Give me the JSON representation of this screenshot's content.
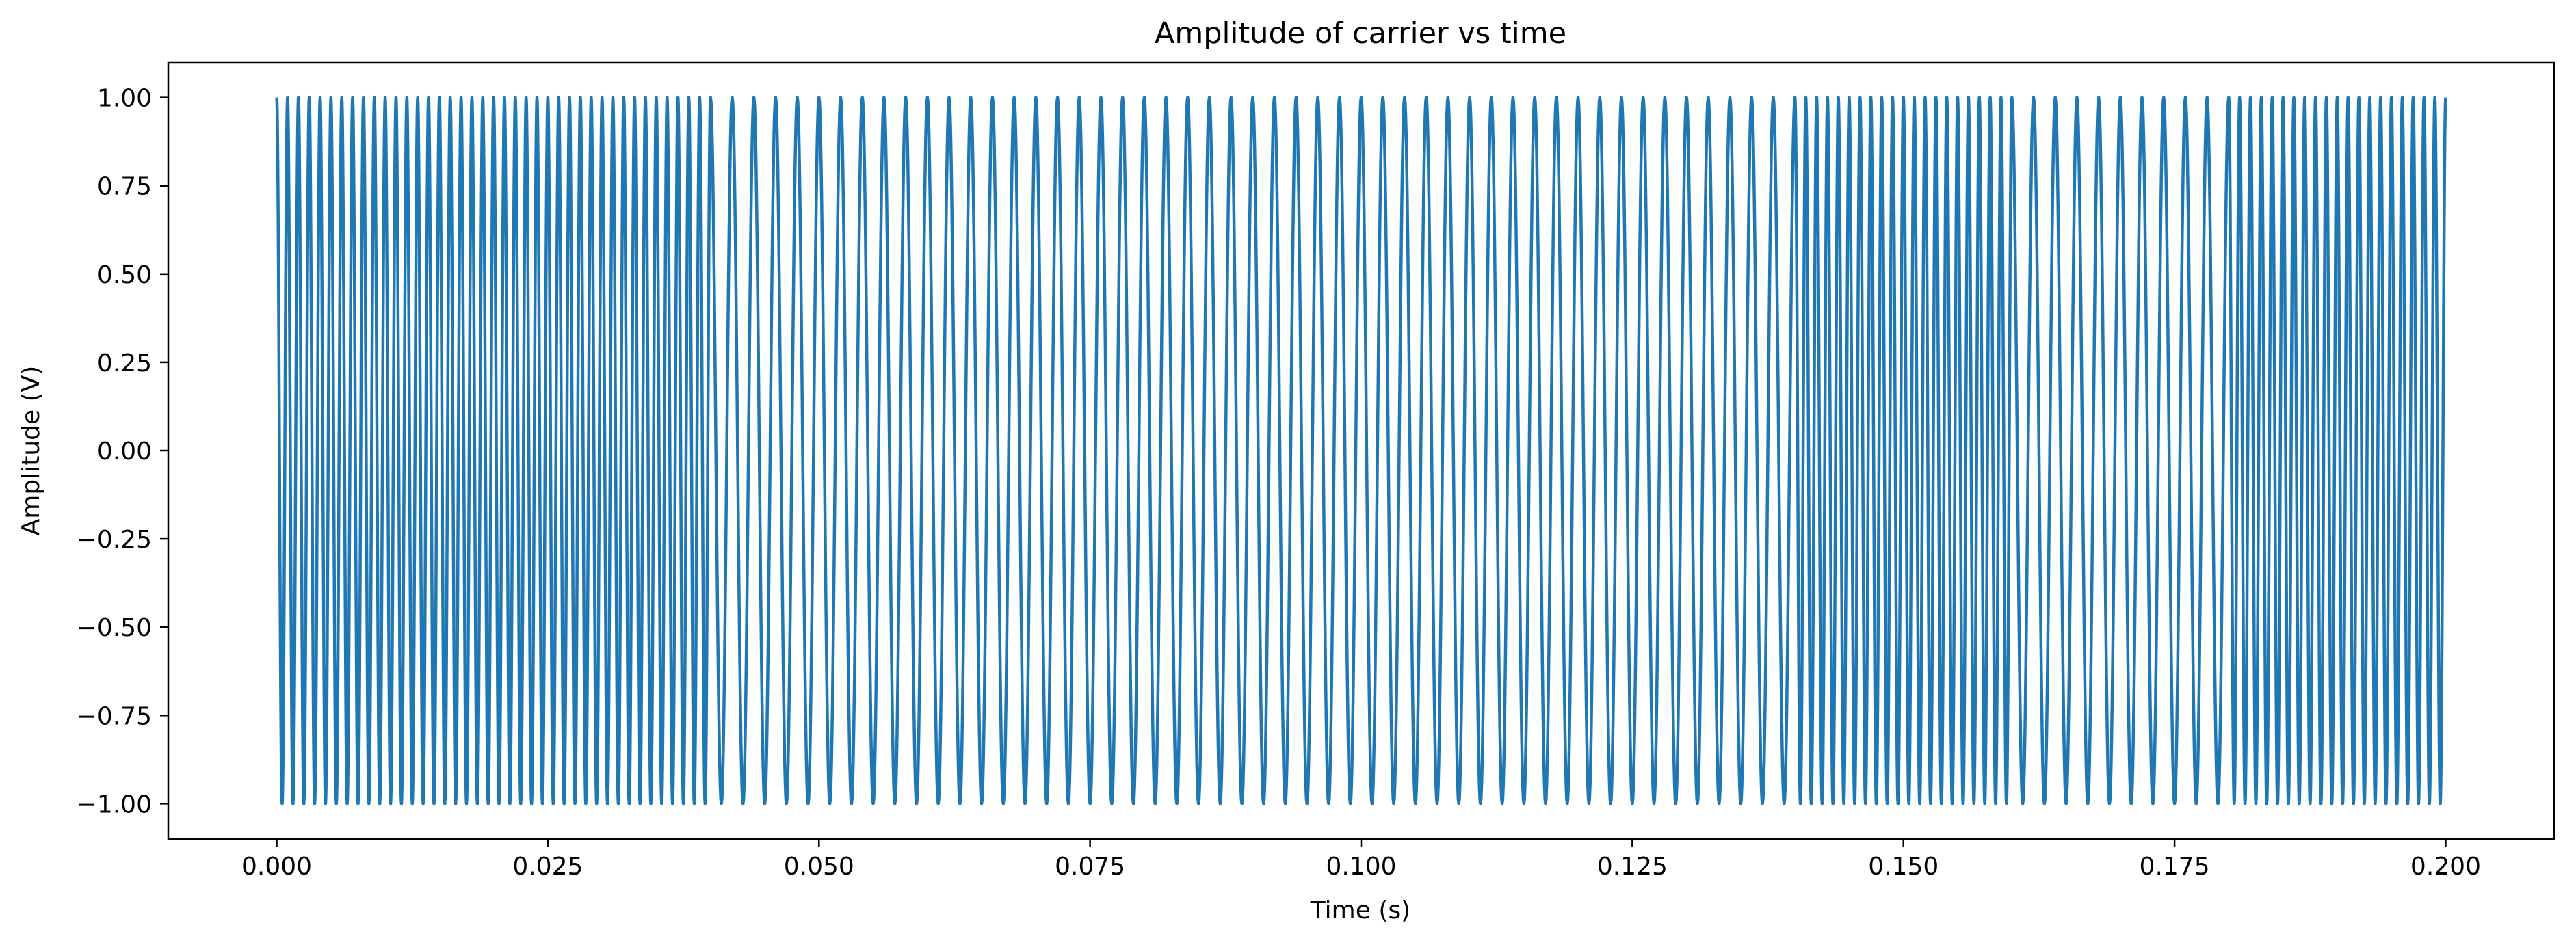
{
  "chart_data": {
    "type": "line",
    "title": "Amplitude of carrier vs time",
    "xlabel": "Time (s)",
    "ylabel": "Amplitude (V)",
    "xlim": [
      -0.01,
      0.21
    ],
    "ylim": [
      -1.1,
      1.1
    ],
    "xticks": [
      {
        "value": 0.0,
        "label": "0.000"
      },
      {
        "value": 0.025,
        "label": "0.025"
      },
      {
        "value": 0.05,
        "label": "0.050"
      },
      {
        "value": 0.075,
        "label": "0.075"
      },
      {
        "value": 0.1,
        "label": "0.100"
      },
      {
        "value": 0.125,
        "label": "0.125"
      },
      {
        "value": 0.15,
        "label": "0.150"
      },
      {
        "value": 0.175,
        "label": "0.175"
      },
      {
        "value": 0.2,
        "label": "0.200"
      }
    ],
    "yticks": [
      {
        "value": 1.0,
        "label": "1.00"
      },
      {
        "value": 0.75,
        "label": "0.75"
      },
      {
        "value": 0.5,
        "label": "0.50"
      },
      {
        "value": 0.25,
        "label": "0.25"
      },
      {
        "value": 0.0,
        "label": "0.00"
      },
      {
        "value": -0.25,
        "label": "−0.25"
      },
      {
        "value": -0.5,
        "label": "−0.50"
      },
      {
        "value": -0.75,
        "label": "−0.75"
      },
      {
        "value": -1.0,
        "label": "−1.00"
      }
    ],
    "grid": false,
    "series": [
      {
        "color": "#1f77b4",
        "t_start": 0.0,
        "t_end": 0.2,
        "segments": [
          {
            "t_start": 0.0,
            "t_end": 0.04,
            "frequency_hz": 1000
          },
          {
            "t_start": 0.04,
            "t_end": 0.14,
            "frequency_hz": 500
          },
          {
            "t_start": 0.14,
            "t_end": 0.16,
            "frequency_hz": 1000
          },
          {
            "t_start": 0.16,
            "t_end": 0.18,
            "frequency_hz": 500
          },
          {
            "t_start": 0.18,
            "t_end": 0.2,
            "frequency_hz": 1000
          }
        ]
      }
    ]
  }
}
